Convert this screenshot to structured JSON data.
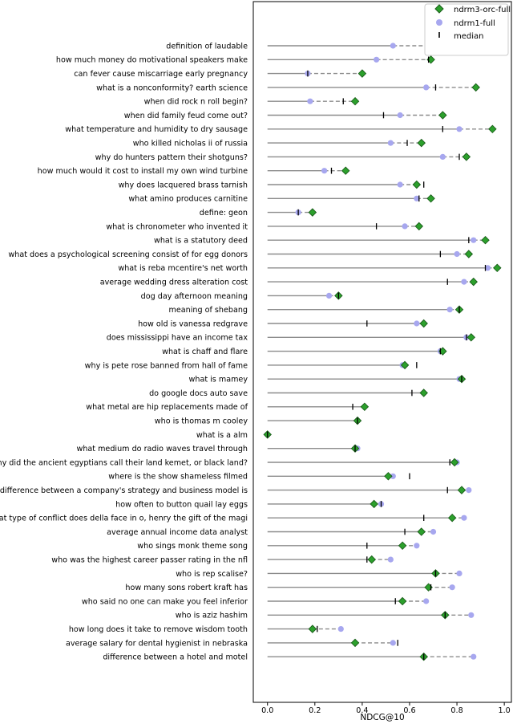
{
  "chart_data": {
    "type": "dot-range",
    "orientation": "horizontal",
    "xlabel": "NDCG@10",
    "xlim": [
      -0.06,
      1.03
    ],
    "xticks": [
      "0.0",
      "0.2",
      "0.4",
      "0.6",
      "0.8",
      "1.0"
    ],
    "legend": {
      "position": "top-right",
      "entries": [
        {
          "label": "ndrm3-orc-full",
          "marker": "diamond",
          "color": "#2ca02c"
        },
        {
          "label": "ndrm1-full",
          "marker": "circle",
          "color": "#a7a7ef"
        },
        {
          "label": "median",
          "marker": "vline",
          "color": "#000000"
        }
      ]
    },
    "queries": [
      {
        "label": "definition of laudable",
        "ndrm3": 0.78,
        "ndrm1": 0.53,
        "median": 0.71
      },
      {
        "label": "how much money do motivational speakers make",
        "ndrm3": 0.69,
        "ndrm1": 0.46,
        "median": 0.68
      },
      {
        "label": "can fever cause miscarriage early pregnancy",
        "ndrm3": 0.4,
        "ndrm1": 0.17,
        "median": 0.17
      },
      {
        "label": "what is a nonconformity? earth science",
        "ndrm3": 0.88,
        "ndrm1": 0.67,
        "median": 0.71
      },
      {
        "label": "when did rock n roll begin?",
        "ndrm3": 0.37,
        "ndrm1": 0.18,
        "median": 0.32
      },
      {
        "label": "when did family feud come out?",
        "ndrm3": 0.74,
        "ndrm1": 0.56,
        "median": 0.49
      },
      {
        "label": "what temperature and humidity to dry sausage",
        "ndrm3": 0.95,
        "ndrm1": 0.81,
        "median": 0.74
      },
      {
        "label": "who killed nicholas ii of russia",
        "ndrm3": 0.65,
        "ndrm1": 0.52,
        "median": 0.59
      },
      {
        "label": "why do hunters pattern their shotguns?",
        "ndrm3": 0.84,
        "ndrm1": 0.74,
        "median": 0.81
      },
      {
        "label": "how much would it cost to install my own wind turbine",
        "ndrm3": 0.33,
        "ndrm1": 0.24,
        "median": 0.27
      },
      {
        "label": "why does lacquered brass tarnish",
        "ndrm3": 0.63,
        "ndrm1": 0.56,
        "median": 0.66
      },
      {
        "label": "what amino produces carnitine",
        "ndrm3": 0.69,
        "ndrm1": 0.63,
        "median": 0.64
      },
      {
        "label": "define: geon",
        "ndrm3": 0.19,
        "ndrm1": 0.13,
        "median": 0.13
      },
      {
        "label": "what is chronometer who invented it",
        "ndrm3": 0.64,
        "ndrm1": 0.58,
        "median": 0.46
      },
      {
        "label": "what is a statutory deed",
        "ndrm3": 0.92,
        "ndrm1": 0.87,
        "median": 0.85
      },
      {
        "label": "what does a psychological screening consist of for egg donors",
        "ndrm3": 0.85,
        "ndrm1": 0.8,
        "median": 0.73
      },
      {
        "label": "what is reba mcentire's net worth",
        "ndrm3": 0.97,
        "ndrm1": 0.93,
        "median": 0.92
      },
      {
        "label": "average wedding dress alteration cost",
        "ndrm3": 0.87,
        "ndrm1": 0.83,
        "median": 0.76
      },
      {
        "label": "dog day afternoon meaning",
        "ndrm3": 0.3,
        "ndrm1": 0.26,
        "median": 0.3
      },
      {
        "label": "meaning of shebang",
        "ndrm3": 0.81,
        "ndrm1": 0.77,
        "median": 0.81
      },
      {
        "label": "how old is vanessa redgrave",
        "ndrm3": 0.66,
        "ndrm1": 0.63,
        "median": 0.42
      },
      {
        "label": "does mississippi have an income tax",
        "ndrm3": 0.86,
        "ndrm1": 0.84,
        "median": 0.84
      },
      {
        "label": "what is chaff and flare",
        "ndrm3": 0.74,
        "ndrm1": 0.73,
        "median": 0.73
      },
      {
        "label": "why is pete rose banned from hall of fame",
        "ndrm3": 0.58,
        "ndrm1": 0.57,
        "median": 0.63
      },
      {
        "label": "what is mamey",
        "ndrm3": 0.82,
        "ndrm1": 0.81,
        "median": 0.82
      },
      {
        "label": "do google docs auto save",
        "ndrm3": 0.66,
        "ndrm1": 0.66,
        "median": 0.61
      },
      {
        "label": "what metal are hip replacements made of",
        "ndrm3": 0.41,
        "ndrm1": 0.41,
        "median": 0.36
      },
      {
        "label": "who is thomas m cooley",
        "ndrm3": 0.38,
        "ndrm1": 0.38,
        "median": 0.38
      },
      {
        "label": "what is a alm",
        "ndrm3": 0.0,
        "ndrm1": 0.0,
        "median": 0.0
      },
      {
        "label": "what medium do radio waves travel through",
        "ndrm3": 0.37,
        "ndrm1": 0.38,
        "median": 0.37
      },
      {
        "label": "why did the ancient egyptians call their land kemet, or black land?",
        "ndrm3": 0.79,
        "ndrm1": 0.8,
        "median": 0.77
      },
      {
        "label": "where is the show shameless filmed",
        "ndrm3": 0.51,
        "ndrm1": 0.53,
        "median": 0.6
      },
      {
        "label": "difference between a company's strategy and business model is",
        "ndrm3": 0.82,
        "ndrm1": 0.85,
        "median": 0.76
      },
      {
        "label": "how often to button quail lay eggs",
        "ndrm3": 0.45,
        "ndrm1": 0.48,
        "median": 0.48
      },
      {
        "label": "what type of conflict does della face in o, henry the gift of the magi",
        "ndrm3": 0.78,
        "ndrm1": 0.83,
        "median": 0.66
      },
      {
        "label": "average annual income data analyst",
        "ndrm3": 0.65,
        "ndrm1": 0.7,
        "median": 0.58
      },
      {
        "label": "who sings monk theme song",
        "ndrm3": 0.57,
        "ndrm1": 0.63,
        "median": 0.42
      },
      {
        "label": "who was the highest career passer  rating in the nfl",
        "ndrm3": 0.44,
        "ndrm1": 0.52,
        "median": 0.42
      },
      {
        "label": "who is rep scalise?",
        "ndrm3": 0.71,
        "ndrm1": 0.81,
        "median": 0.71
      },
      {
        "label": "how many sons robert kraft has",
        "ndrm3": 0.68,
        "ndrm1": 0.78,
        "median": 0.69
      },
      {
        "label": "who said no one can make you feel inferior",
        "ndrm3": 0.57,
        "ndrm1": 0.67,
        "median": 0.54
      },
      {
        "label": "who is aziz hashim",
        "ndrm3": 0.75,
        "ndrm1": 0.86,
        "median": 0.75
      },
      {
        "label": "how long does it take to remove wisdom tooth",
        "ndrm3": 0.19,
        "ndrm1": 0.31,
        "median": 0.21
      },
      {
        "label": "average salary for dental hygienist in nebraska",
        "ndrm3": 0.37,
        "ndrm1": 0.53,
        "median": 0.55
      },
      {
        "label": "difference between a hotel and motel",
        "ndrm3": 0.66,
        "ndrm1": 0.87,
        "median": 0.66
      }
    ]
  }
}
